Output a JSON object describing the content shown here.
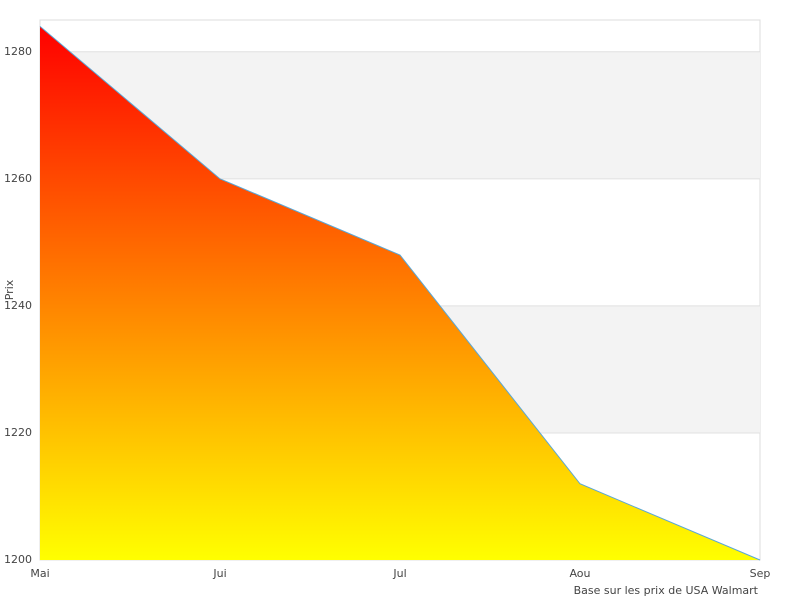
{
  "chart_data": {
    "type": "area",
    "categories": [
      "Mai",
      "Jui",
      "Jul",
      "Aou",
      "Sep"
    ],
    "values": [
      1284,
      1260,
      1248,
      1212,
      1200
    ],
    "y_label": "Prix",
    "footnote": "Base sur les prix de USA Walmart",
    "ylim": [
      1200,
      1285
    ],
    "yticks": [
      1200,
      1220,
      1240,
      1260,
      1280
    ],
    "grid": true,
    "color_top": "#ff0000",
    "color_bottom": "#ffff00",
    "line_color": "#5aa7d6"
  }
}
